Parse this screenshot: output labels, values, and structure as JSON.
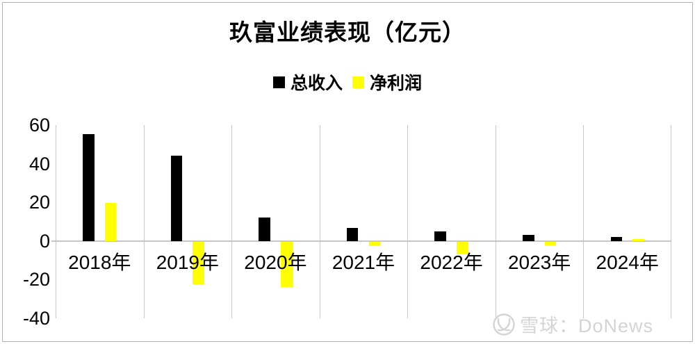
{
  "title": "玖富业绩表现（亿元）",
  "legend": [
    {
      "label": "总收入",
      "color": "#000000"
    },
    {
      "label": "净利润",
      "color": "#ffff00"
    }
  ],
  "watermark": {
    "logo": "xueqiu-snowball-logo",
    "text": "雪球：DoNews",
    "color": "#d4d4d4"
  },
  "colors": {
    "revenue_bar": "#000000",
    "profit_bar": "#ffff00",
    "gridline": "#c9c9c9",
    "background": "#ffffff"
  },
  "chart_data": {
    "type": "bar",
    "title": "玖富业绩表现（亿元）",
    "categories": [
      "2018年",
      "2019年",
      "2020年",
      "2021年",
      "2022年",
      "2023年",
      "2024年"
    ],
    "series": [
      {
        "name": "总收入",
        "color": "#000000",
        "values": [
          55.5,
          44.3,
          12.3,
          6.7,
          5.1,
          3.2,
          2.2
        ]
      },
      {
        "name": "净利润",
        "color": "#ffff00",
        "values": [
          19.8,
          -22.0,
          -23.3,
          -2.3,
          -6.5,
          -1.9,
          0.9
        ]
      }
    ],
    "xlabel": "",
    "ylabel": "",
    "ylim": [
      -40,
      60
    ],
    "yticks": [
      60,
      40,
      20,
      0,
      -20,
      -40
    ],
    "grid": "vertical category separators + zero axis line only",
    "legend_position": "top-center"
  }
}
